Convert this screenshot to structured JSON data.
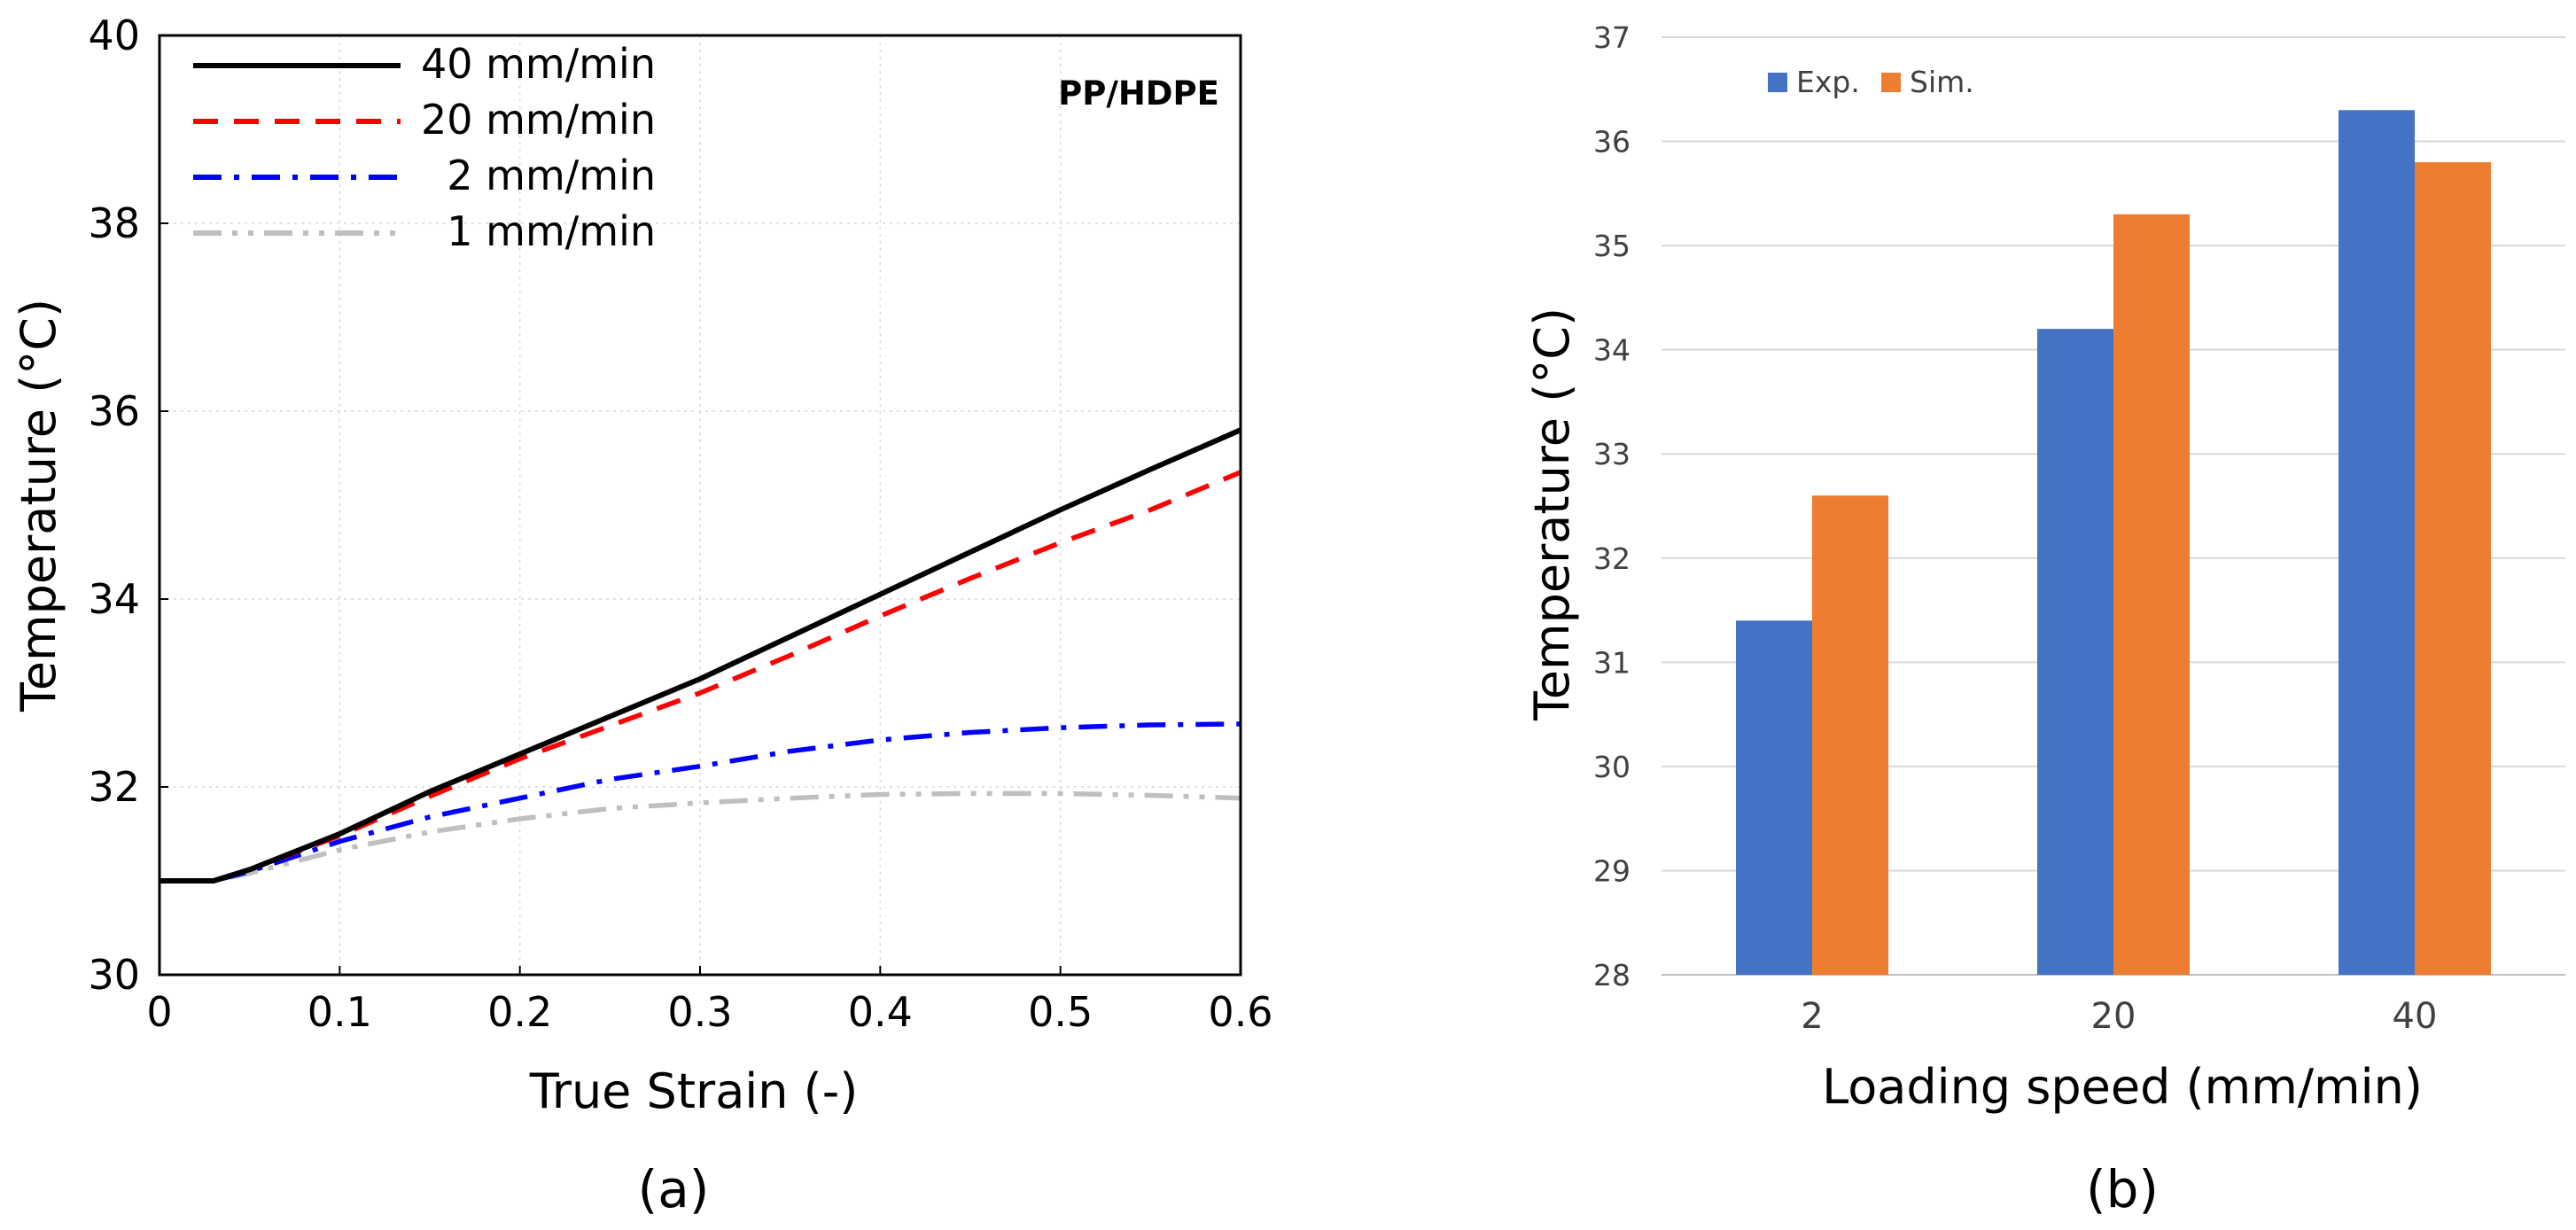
{
  "chart_data": [
    {
      "type": "line",
      "title": "",
      "annotation": "PP/HDPE",
      "caption": "(a)",
      "xlabel": "True Strain (-)",
      "ylabel": "Temperature (°C)",
      "xlim": [
        0,
        0.6
      ],
      "ylim": [
        30,
        40
      ],
      "xticks": [
        0,
        0.1,
        0.2,
        0.3,
        0.4,
        0.5,
        0.6
      ],
      "xtick_labels": [
        "0",
        "0.1",
        "0.2",
        "0.3",
        "0.4",
        "0.5",
        "0.6"
      ],
      "yticks": [
        30,
        32,
        34,
        36,
        38,
        40
      ],
      "ytick_labels": [
        "30",
        "32",
        "34",
        "36",
        "38",
        "40"
      ],
      "grid": true,
      "legend_position": "top-left",
      "series": [
        {
          "name": "40 mm/min",
          "color": "#000000",
          "style": "solid",
          "x": [
            0,
            0.03,
            0.05,
            0.1,
            0.15,
            0.2,
            0.25,
            0.3,
            0.35,
            0.4,
            0.45,
            0.5,
            0.55,
            0.6
          ],
          "y": [
            31.0,
            31.0,
            31.12,
            31.5,
            31.95,
            32.35,
            32.75,
            33.15,
            33.6,
            34.05,
            34.5,
            34.95,
            35.38,
            35.8
          ]
        },
        {
          "name": "20 mm/min",
          "color": "#ff0000",
          "style": "dashed",
          "x": [
            0,
            0.03,
            0.05,
            0.1,
            0.15,
            0.2,
            0.25,
            0.3,
            0.35,
            0.4,
            0.45,
            0.5,
            0.55,
            0.6
          ],
          "y": [
            31.0,
            31.0,
            31.12,
            31.48,
            31.9,
            32.3,
            32.65,
            33.0,
            33.4,
            33.82,
            34.22,
            34.6,
            34.95,
            35.35
          ]
        },
        {
          "name": "2 mm/min",
          "color": "#0000ff",
          "style": "dashdot",
          "x": [
            0,
            0.03,
            0.05,
            0.1,
            0.15,
            0.2,
            0.25,
            0.3,
            0.35,
            0.4,
            0.45,
            0.5,
            0.55,
            0.6
          ],
          "y": [
            31.0,
            31.0,
            31.1,
            31.42,
            31.68,
            31.88,
            32.08,
            32.22,
            32.38,
            32.5,
            32.58,
            32.63,
            32.66,
            32.67
          ]
        },
        {
          "name": "1 mm/min",
          "color": "#bfbfbf",
          "style": "dashdotdot",
          "x": [
            0,
            0.03,
            0.05,
            0.1,
            0.15,
            0.2,
            0.25,
            0.3,
            0.35,
            0.4,
            0.45,
            0.5,
            0.55,
            0.6
          ],
          "y": [
            31.0,
            31.0,
            31.08,
            31.33,
            31.52,
            31.66,
            31.77,
            31.83,
            31.88,
            31.92,
            31.93,
            31.93,
            31.91,
            31.88
          ]
        }
      ]
    },
    {
      "type": "bar",
      "title": "",
      "caption": "(b)",
      "xlabel": "Loading speed (mm/min)",
      "ylabel": "Temperature (°C)",
      "ylim": [
        28,
        37
      ],
      "yticks": [
        28,
        29,
        30,
        31,
        32,
        33,
        34,
        35,
        36,
        37
      ],
      "ytick_labels": [
        "28",
        "29",
        "30",
        "31",
        "32",
        "33",
        "34",
        "35",
        "36",
        "37"
      ],
      "grid": true,
      "legend_position": "top-left",
      "categories": [
        "2",
        "20",
        "40"
      ],
      "series": [
        {
          "name": "Exp.",
          "color": "#4472c4",
          "values": [
            31.4,
            34.2,
            36.3
          ]
        },
        {
          "name": "Sim.",
          "color": "#ed7d31",
          "values": [
            32.6,
            35.3,
            35.8
          ]
        }
      ]
    }
  ]
}
